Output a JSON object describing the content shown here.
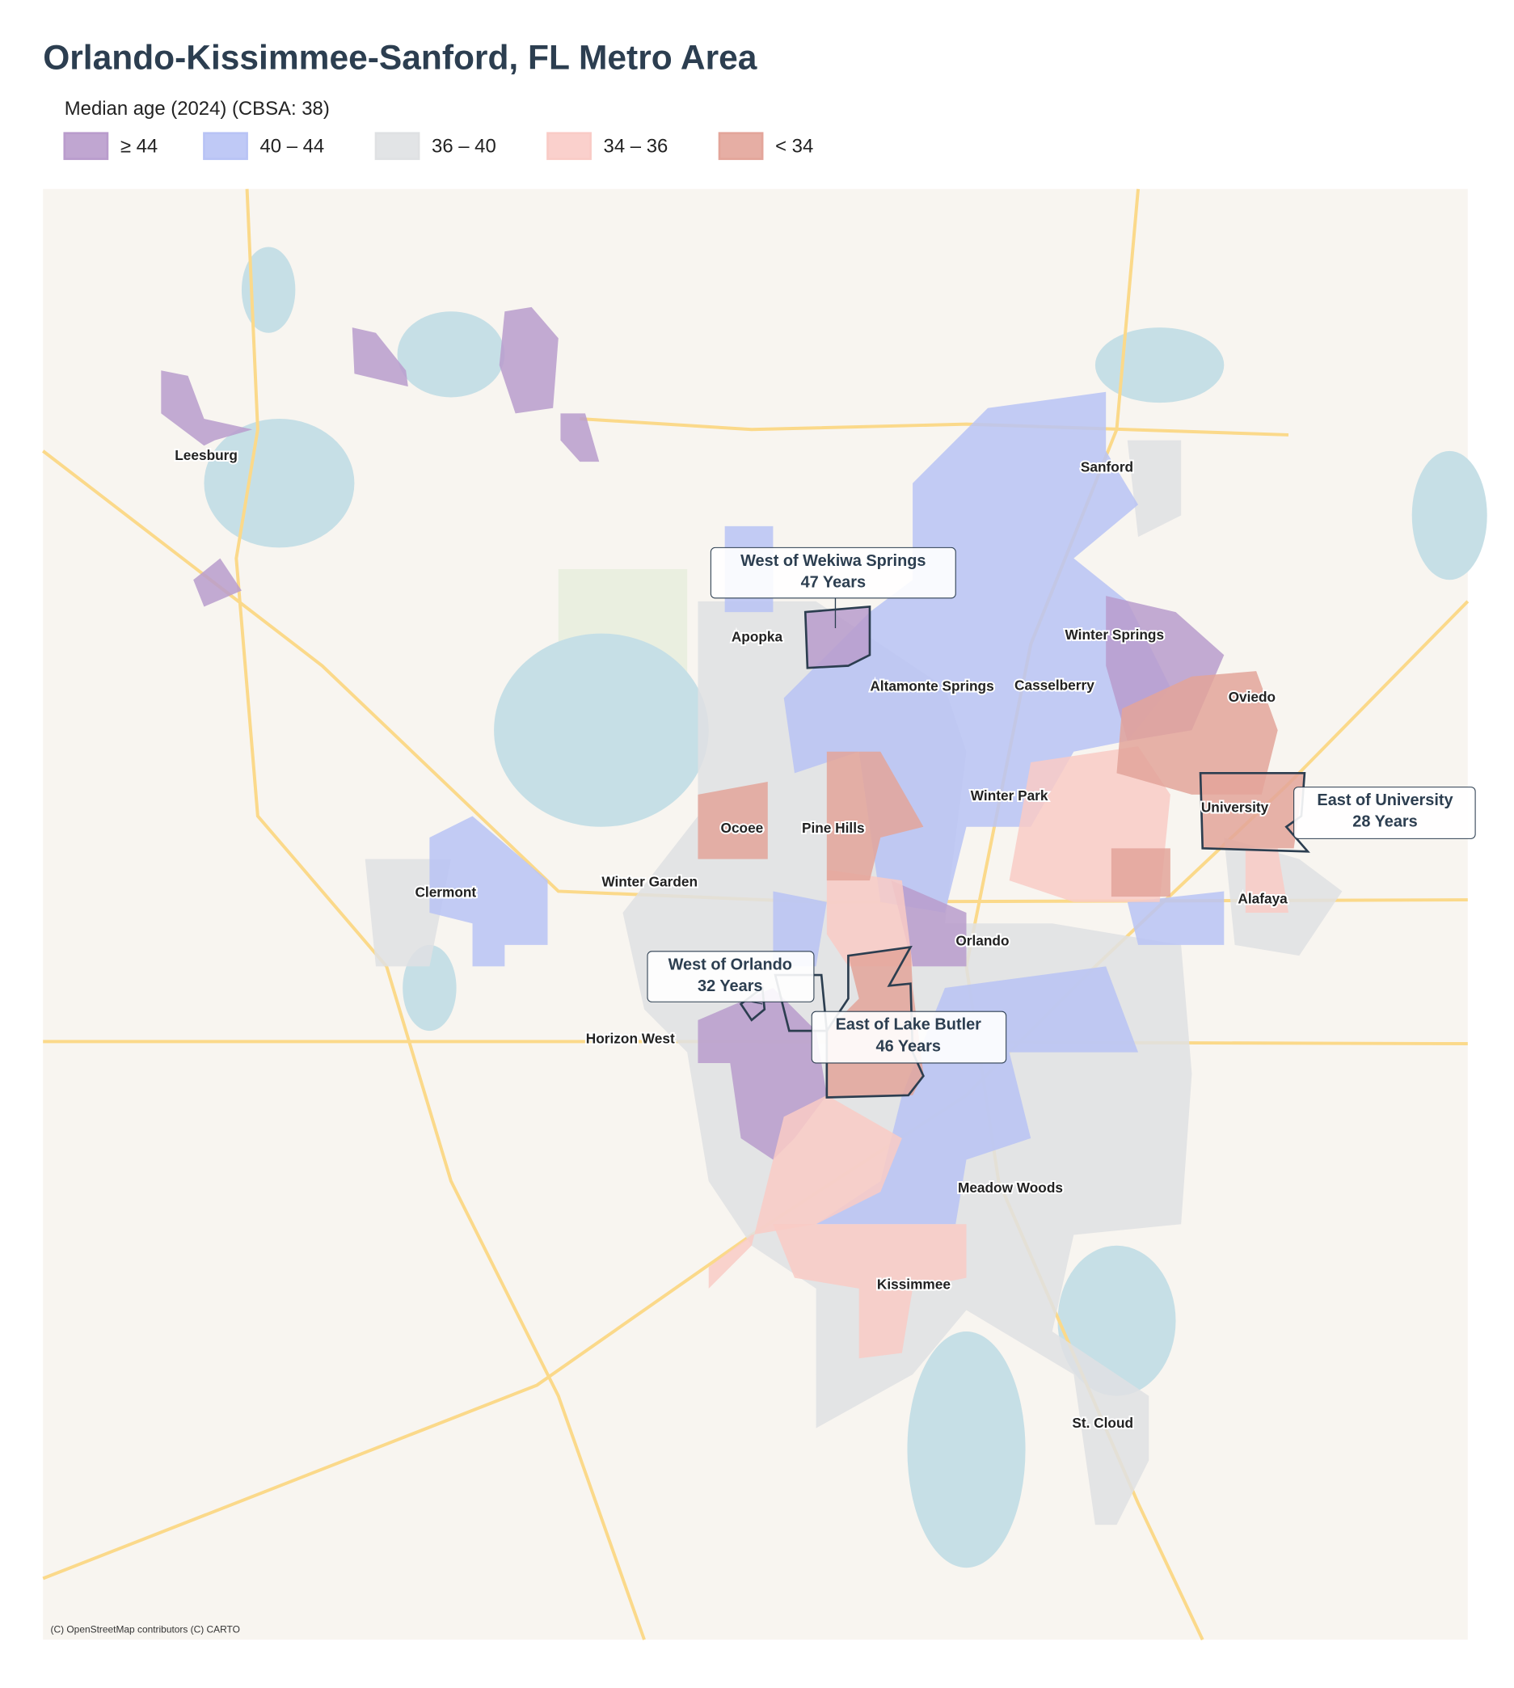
{
  "header": {
    "title": "Orlando-Kissimmee-Sanford, FL Metro Area"
  },
  "legend": {
    "label": "Median age (2024)  (CBSA: 38)",
    "items": [
      {
        "label": "≥ 44",
        "color": "#b99ccc"
      },
      {
        "label": "40 – 44",
        "color": "#b8c3f5"
      },
      {
        "label": "36 – 40",
        "color": "#dfe1e3"
      },
      {
        "label": "34 – 36",
        "color": "#f9cbc6"
      },
      {
        "label": "< 34",
        "color": "#e3a59a"
      }
    ]
  },
  "places": [
    "Leesburg",
    "Sanford",
    "Apopka",
    "Winter Springs",
    "Altamonte Springs",
    "Casselberry",
    "Oviedo",
    "Winter Park",
    "University",
    "Ocoee",
    "Pine Hills",
    "Clermont",
    "Winter Garden",
    "Alafaya",
    "Orlando",
    "Horizon West",
    "Meadow Woods",
    "Kissimmee",
    "St. Cloud"
  ],
  "callouts": [
    {
      "name": "West of Wekiwa Springs",
      "value": "47 Years"
    },
    {
      "name": "East of University",
      "value": "28 Years"
    },
    {
      "name": "West of Orlando",
      "value": "32 Years"
    },
    {
      "name": "East of Lake Butler",
      "value": "46 Years"
    }
  ],
  "attribution": "(C) OpenStreetMap contributors (C) CARTO"
}
